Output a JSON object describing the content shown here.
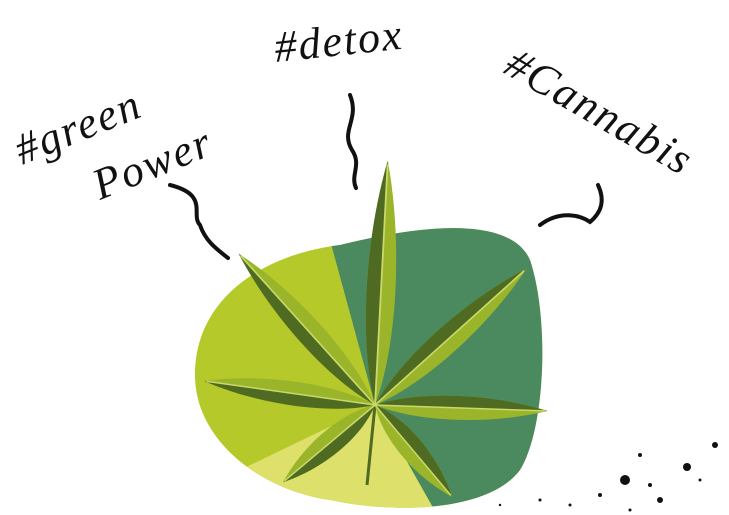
{
  "labels": {
    "green_power": [
      "#green",
      "Power"
    ],
    "detox": "#detox",
    "cannabis": "#Cannabis"
  }
}
